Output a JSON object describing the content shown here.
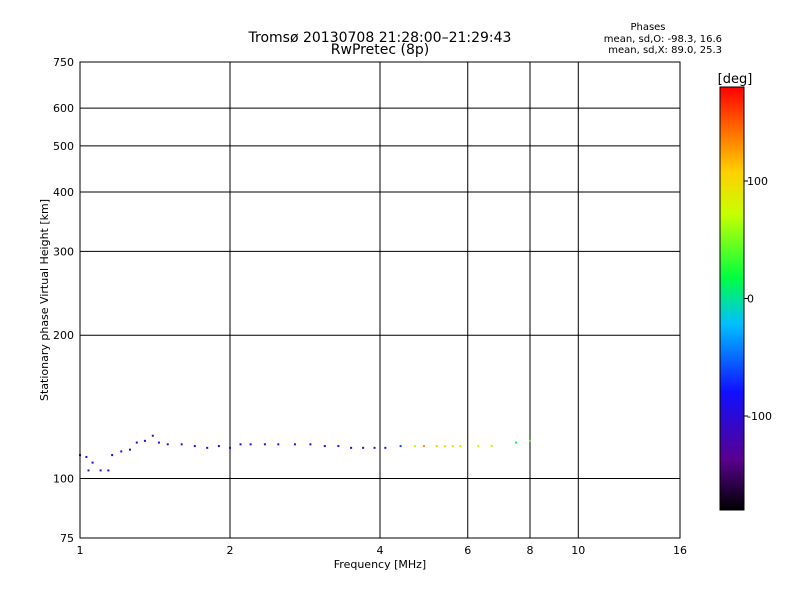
{
  "chart_data": {
    "type": "scatter",
    "title": "Tromsø 20130708 21:28:00–21:29:43",
    "subtitle": "RwPretec (8p)",
    "xlabel": "Frequency [MHz]",
    "ylabel": "Stationary phase Virtual Height [km]",
    "xscale": "log",
    "yscale": "log",
    "xlim": [
      1,
      16
    ],
    "ylim": [
      75,
      750
    ],
    "x_ticks": [
      1,
      2,
      4,
      6,
      8,
      10,
      16
    ],
    "x_tick_labels": [
      "1",
      "2",
      "4",
      "6",
      "8",
      "10",
      "16"
    ],
    "y_ticks": [
      75,
      100,
      200,
      300,
      400,
      500,
      600,
      750
    ],
    "y_tick_labels": [
      "75",
      "100",
      "200",
      "300",
      "400",
      "500",
      "600",
      "750"
    ],
    "grid": true,
    "phases": {
      "heading": "Phases",
      "line_o": "mean, sd,O: -98.3, 16.6",
      "line_x": "mean, sd,X:  89.0, 25.3"
    },
    "colorbar": {
      "label": "[deg]",
      "range": [
        -180,
        180
      ],
      "ticks": [
        100,
        0,
        -100
      ],
      "tick_labels": [
        "100",
        "0",
        "-100"
      ],
      "colormap": "rainbow (black-purple-blue-cyan-green-yellow-red)"
    },
    "series": [
      {
        "points": [
          [
            1.0,
            112,
            -100
          ],
          [
            1.03,
            111,
            -100
          ],
          [
            1.06,
            108,
            -100
          ],
          [
            1.04,
            104,
            -110
          ],
          [
            1.1,
            104,
            -105
          ],
          [
            1.14,
            104,
            -100
          ],
          [
            1.16,
            112,
            -95
          ],
          [
            1.21,
            114,
            -100
          ],
          [
            1.26,
            115,
            -95
          ],
          [
            1.3,
            119,
            -100
          ],
          [
            1.35,
            120,
            -100
          ],
          [
            1.4,
            123,
            -95
          ],
          [
            1.44,
            119,
            -100
          ],
          [
            1.5,
            118,
            -100
          ],
          [
            1.6,
            118,
            -100
          ],
          [
            1.7,
            117,
            -100
          ],
          [
            1.8,
            116,
            -100
          ],
          [
            1.9,
            117,
            -100
          ],
          [
            2.0,
            116,
            -100
          ],
          [
            2.1,
            118,
            -100
          ],
          [
            2.2,
            118,
            -100
          ],
          [
            2.35,
            118,
            -100
          ],
          [
            2.5,
            118,
            -100
          ],
          [
            2.7,
            118,
            -100
          ],
          [
            2.9,
            118,
            -100
          ],
          [
            3.1,
            117,
            -100
          ],
          [
            3.3,
            117,
            -100
          ],
          [
            3.5,
            116,
            -100
          ],
          [
            3.7,
            116,
            -100
          ],
          [
            3.9,
            116,
            -100
          ],
          [
            4.1,
            116,
            -100
          ],
          [
            4.4,
            117,
            -60
          ],
          [
            4.7,
            117,
            80
          ],
          [
            4.9,
            117,
            130
          ],
          [
            5.2,
            117,
            110
          ],
          [
            5.4,
            117,
            100
          ],
          [
            5.6,
            117,
            95
          ],
          [
            5.8,
            117,
            90
          ],
          [
            6.3,
            117,
            70
          ],
          [
            6.7,
            117,
            80
          ],
          [
            7.5,
            119,
            20
          ],
          [
            8.0,
            120,
            40
          ]
        ]
      }
    ]
  }
}
